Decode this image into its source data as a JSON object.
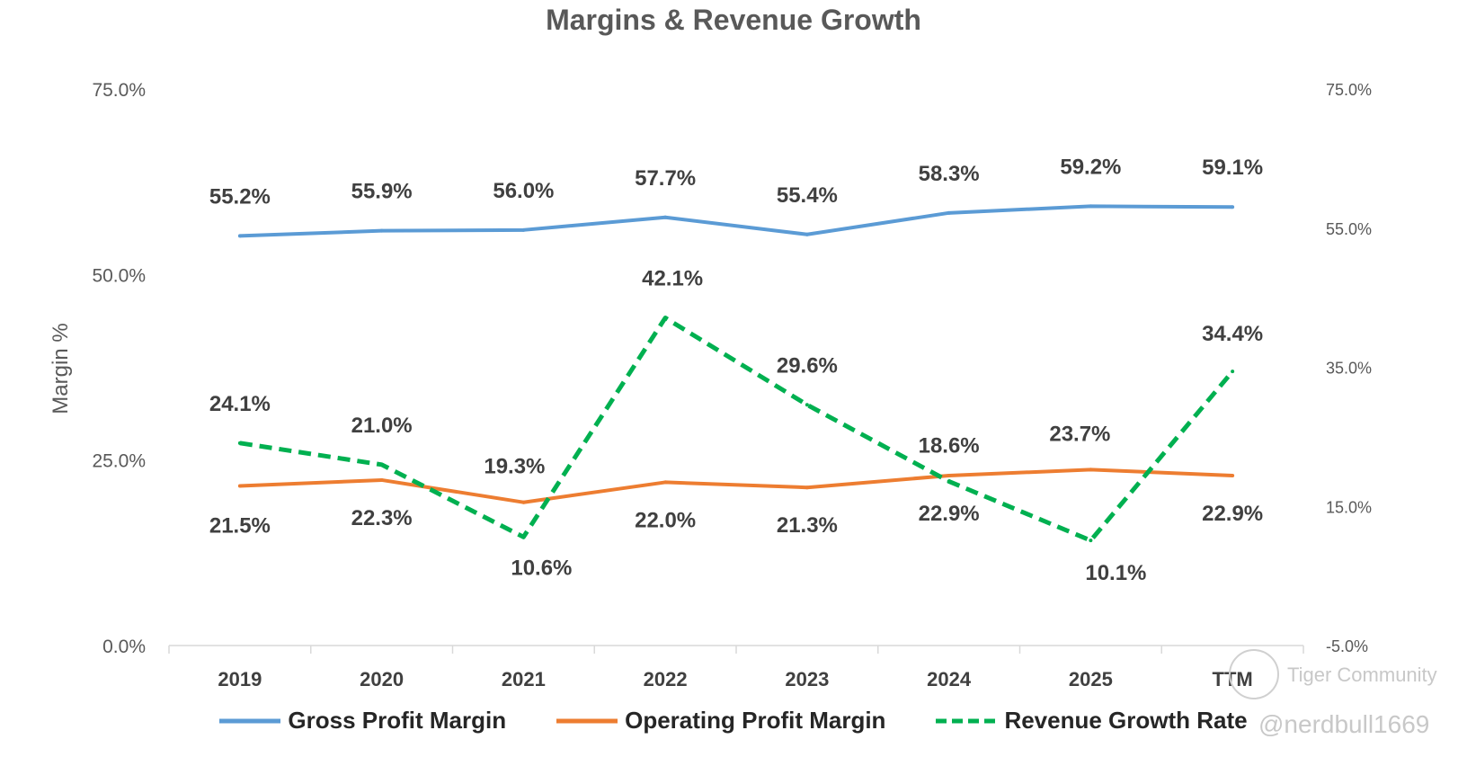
{
  "chart_data": {
    "type": "line",
    "title": "Margins & Revenue Growth",
    "ylabel": "Margin %",
    "categories": [
      "2019",
      "2020",
      "2021",
      "2022",
      "2023",
      "2024",
      "2025",
      "TTM"
    ],
    "left_axis": {
      "range": [
        0,
        75
      ],
      "ticks": [
        "0.0%",
        "25.0%",
        "50.0%",
        "75.0%"
      ],
      "tick_values": [
        0,
        25,
        50,
        75
      ]
    },
    "right_axis": {
      "range": [
        -5,
        75
      ],
      "ticks": [
        "-5.0%",
        "15.0%",
        "35.0%",
        "55.0%",
        "75.0%"
      ],
      "tick_values": [
        -5,
        15,
        35,
        55,
        75
      ]
    },
    "series": [
      {
        "name": "Gross Profit Margin",
        "axis": "left",
        "color": "#5B9BD5",
        "style": "solid",
        "values": [
          55.2,
          55.9,
          56.0,
          57.7,
          55.4,
          58.3,
          59.2,
          59.1
        ],
        "labels": [
          "55.2%",
          "55.9%",
          "56.0%",
          "57.7%",
          "55.4%",
          "58.3%",
          "59.2%",
          "59.1%"
        ]
      },
      {
        "name": "Operating Profit Margin",
        "axis": "left",
        "color": "#ED7D31",
        "style": "solid",
        "values": [
          21.5,
          22.3,
          19.3,
          22.0,
          21.3,
          22.9,
          23.7,
          22.9
        ],
        "labels": [
          "21.5%",
          "22.3%",
          "19.3%",
          "22.0%",
          "21.3%",
          "22.9%",
          "23.7%",
          "22.9%"
        ]
      },
      {
        "name": "Revenue Growth Rate",
        "axis": "right",
        "color": "#00B050",
        "style": "dashed",
        "values": [
          24.1,
          21.0,
          10.6,
          42.1,
          29.6,
          18.6,
          10.1,
          34.4
        ],
        "labels": [
          "24.1%",
          "21.0%",
          "10.6%",
          "42.1%",
          "29.6%",
          "18.6%",
          "10.1%",
          "34.4%"
        ]
      }
    ],
    "legend_position": "bottom",
    "grid": false
  },
  "watermark": {
    "brand": "Tiger Community",
    "handle": "@nerdbull1669"
  }
}
